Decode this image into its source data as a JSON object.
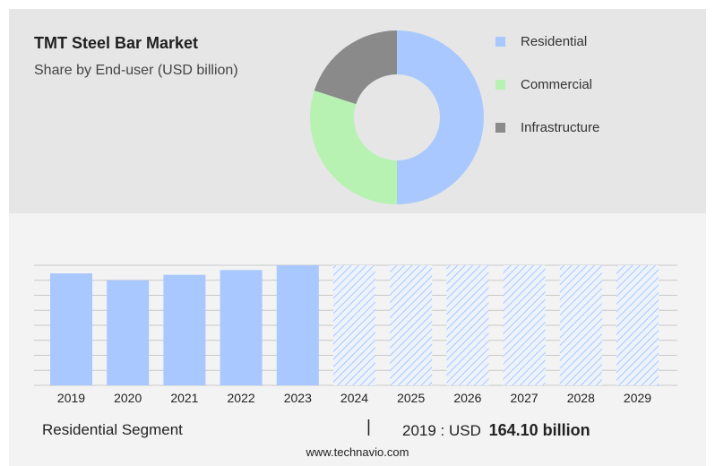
{
  "header": {
    "title": "TMT Steel Bar Market",
    "subtitle": "Share by End-user (USD billion)"
  },
  "chart_data": [
    {
      "type": "pie",
      "variant": "donut",
      "slices": [
        {
          "name": "Residential",
          "value": 50,
          "color": "#a8c8ff"
        },
        {
          "name": "Commercial",
          "value": 30,
          "color": "#b7f2b3"
        },
        {
          "name": "Infrastructure",
          "value": 20,
          "color": "#8a8a8a"
        }
      ],
      "legend_position": "right"
    },
    {
      "type": "bar",
      "categories": [
        "2019",
        "2020",
        "2021",
        "2022",
        "2023",
        "2024",
        "2025",
        "2026",
        "2027",
        "2028",
        "2029"
      ],
      "values": [
        164.1,
        154,
        162,
        169,
        176,
        176,
        176,
        176,
        176,
        176,
        176
      ],
      "forecast_from": "2024",
      "bar_color": "#a8c8ff",
      "forecast_style": "hatched",
      "ylim": [
        0,
        176
      ],
      "grid": true
    }
  ],
  "footer": {
    "segment_label": "Residential Segment",
    "separator": "|",
    "value_prefix": "2019 : USD",
    "value": "164.10 billion"
  },
  "source": "www.technavio.com"
}
